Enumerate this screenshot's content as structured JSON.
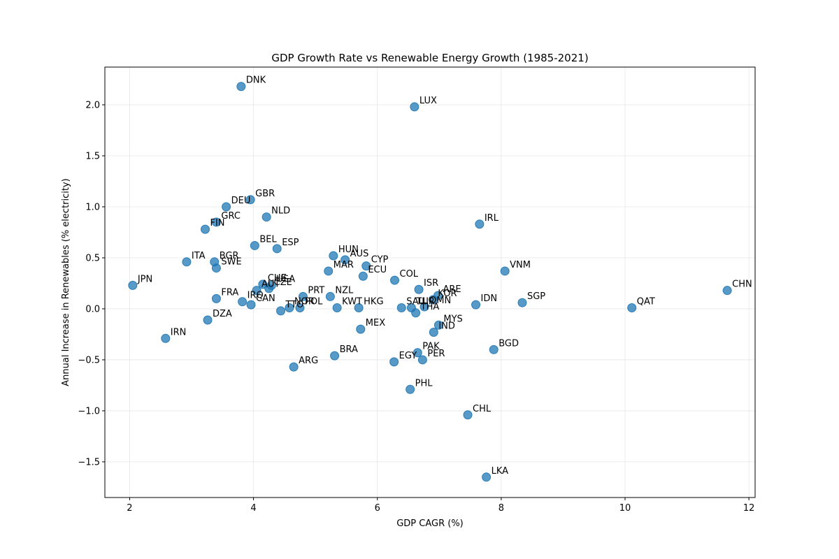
{
  "chart_data": {
    "type": "scatter",
    "title": "GDP Growth Rate vs Renewable Energy Growth (1985-2021)",
    "xlabel": "GDP CAGR (%)",
    "ylabel": "Annual Increase in Renewables (% electricity)",
    "xlim": [
      1.6,
      12.1
    ],
    "ylim": [
      -1.85,
      2.37
    ],
    "xticks": [
      2,
      4,
      6,
      8,
      10,
      12
    ],
    "yticks": [
      -1.5,
      -1.0,
      -0.5,
      0.0,
      0.5,
      1.0,
      1.5,
      2.0
    ],
    "grid": true,
    "point_color": "#1f77b4",
    "point_alpha": 0.75,
    "points": [
      {
        "label": "DNK",
        "x": 3.8,
        "y": 2.18
      },
      {
        "label": "LUX",
        "x": 6.6,
        "y": 1.98
      },
      {
        "label": "GBR",
        "x": 3.95,
        "y": 1.07
      },
      {
        "label": "DEU",
        "x": 3.56,
        "y": 1.0
      },
      {
        "label": "NLD",
        "x": 4.21,
        "y": 0.9
      },
      {
        "label": "GRC",
        "x": 3.4,
        "y": 0.85
      },
      {
        "label": "FIN",
        "x": 3.22,
        "y": 0.78
      },
      {
        "label": "IRL",
        "x": 7.65,
        "y": 0.83
      },
      {
        "label": "BEL",
        "x": 4.02,
        "y": 0.62
      },
      {
        "label": "ESP",
        "x": 4.38,
        "y": 0.59
      },
      {
        "label": "HUN",
        "x": 5.29,
        "y": 0.52
      },
      {
        "label": "AUS",
        "x": 5.48,
        "y": 0.48
      },
      {
        "label": "ITA",
        "x": 2.92,
        "y": 0.46
      },
      {
        "label": "BGR",
        "x": 3.37,
        "y": 0.46
      },
      {
        "label": "SWE",
        "x": 3.4,
        "y": 0.4
      },
      {
        "label": "CYP",
        "x": 5.82,
        "y": 0.42
      },
      {
        "label": "MAR",
        "x": 5.21,
        "y": 0.37
      },
      {
        "label": "VNM",
        "x": 8.06,
        "y": 0.37
      },
      {
        "label": "ECU",
        "x": 5.77,
        "y": 0.32
      },
      {
        "label": "COL",
        "x": 6.28,
        "y": 0.28
      },
      {
        "label": "JPN",
        "x": 2.05,
        "y": 0.23
      },
      {
        "label": "CHE",
        "x": 4.15,
        "y": 0.24
      },
      {
        "label": "USA",
        "x": 4.29,
        "y": 0.23
      },
      {
        "label": "AUT",
        "x": 4.05,
        "y": 0.18
      },
      {
        "label": "CZE",
        "x": 4.25,
        "y": 0.2
      },
      {
        "label": "ISR",
        "x": 6.67,
        "y": 0.19
      },
      {
        "label": "CHN",
        "x": 11.65,
        "y": 0.18
      },
      {
        "label": "ARE",
        "x": 6.98,
        "y": 0.13
      },
      {
        "label": "KOR",
        "x": 6.9,
        "y": 0.09
      },
      {
        "label": "PRT",
        "x": 4.8,
        "y": 0.12
      },
      {
        "label": "NZL",
        "x": 5.24,
        "y": 0.12
      },
      {
        "label": "FRA",
        "x": 3.4,
        "y": 0.1
      },
      {
        "label": "IRQ",
        "x": 3.82,
        "y": 0.07
      },
      {
        "label": "CAN",
        "x": 3.96,
        "y": 0.04
      },
      {
        "label": "SGP",
        "x": 8.34,
        "y": 0.06
      },
      {
        "label": "NOR",
        "x": 4.58,
        "y": 0.01
      },
      {
        "label": "POL",
        "x": 4.75,
        "y": 0.01
      },
      {
        "label": "TTO",
        "x": 4.44,
        "y": -0.02
      },
      {
        "label": "IDN",
        "x": 7.59,
        "y": 0.04
      },
      {
        "label": "KWT",
        "x": 5.35,
        "y": 0.01
      },
      {
        "label": "HKG",
        "x": 5.7,
        "y": 0.01
      },
      {
        "label": "SAU",
        "x": 6.39,
        "y": 0.01
      },
      {
        "label": "TUR",
        "x": 6.55,
        "y": 0.01
      },
      {
        "label": "OMN",
        "x": 6.76,
        "y": 0.02
      },
      {
        "label": "THA",
        "x": 6.62,
        "y": -0.04
      },
      {
        "label": "QAT",
        "x": 10.11,
        "y": 0.01
      },
      {
        "label": "DZA",
        "x": 3.26,
        "y": -0.11
      },
      {
        "label": "MYS",
        "x": 6.99,
        "y": -0.16
      },
      {
        "label": "IND",
        "x": 6.91,
        "y": -0.23
      },
      {
        "label": "MEX",
        "x": 5.73,
        "y": -0.2
      },
      {
        "label": "IRN",
        "x": 2.58,
        "y": -0.29
      },
      {
        "label": "BGD",
        "x": 7.88,
        "y": -0.4
      },
      {
        "label": "PAK",
        "x": 6.65,
        "y": -0.43
      },
      {
        "label": "BRA",
        "x": 5.31,
        "y": -0.46
      },
      {
        "label": "PER",
        "x": 6.73,
        "y": -0.5
      },
      {
        "label": "EGY",
        "x": 6.27,
        "y": -0.52
      },
      {
        "label": "ARG",
        "x": 4.65,
        "y": -0.57
      },
      {
        "label": "PHL",
        "x": 6.53,
        "y": -0.79
      },
      {
        "label": "CHL",
        "x": 7.46,
        "y": -1.04
      },
      {
        "label": "LKA",
        "x": 7.76,
        "y": -1.65
      }
    ]
  }
}
